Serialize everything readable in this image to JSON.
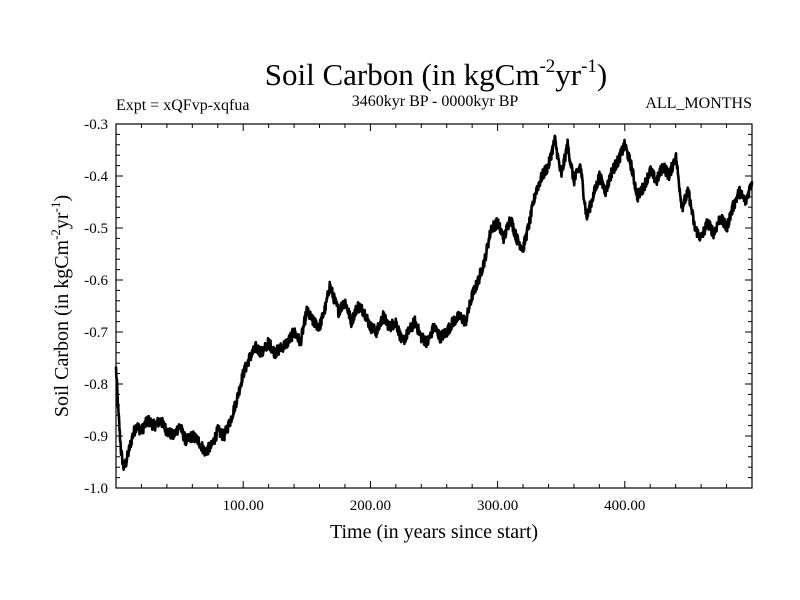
{
  "chart_data": {
    "type": "line",
    "title": "Soil Carbon (in kgCm",
    "title_sup1": "-2",
    "title_mid": "yr",
    "title_sup2": "-1",
    "title_end": ")",
    "subtitle_left": "Expt = xQFvp-xqfua",
    "subtitle_center": "3460kyr BP - 0000kyr BP",
    "subtitle_right": "ALL_MONTHS",
    "xlabel": "Time (in years since start)",
    "ylabel": "Soil Carbon (in kgCm",
    "ylabel_sup1": "-2",
    "ylabel_mid": "yr",
    "ylabel_sup2": "-1",
    "ylabel_end": ")",
    "xlim": [
      0,
      500
    ],
    "ylim": [
      -1.0,
      -0.3
    ],
    "xticks": [
      100,
      200,
      300,
      400
    ],
    "xtick_labels": [
      "100.00",
      "200.00",
      "300.00",
      "400.00"
    ],
    "yticks": [
      -1.0,
      -0.9,
      -0.8,
      -0.7,
      -0.6,
      -0.5,
      -0.4,
      -0.3
    ],
    "ytick_labels": [
      "-1.0",
      "-0.9",
      "-0.8",
      "-0.7",
      "-0.6",
      "-0.5",
      "-0.4",
      "-0.3"
    ],
    "line_color": "#000000",
    "series": [
      {
        "name": "Soil Carbon",
        "x": [
          0,
          2,
          4,
          6,
          8,
          10,
          13,
          16,
          20,
          25,
          30,
          35,
          40,
          45,
          50,
          55,
          60,
          65,
          70,
          75,
          80,
          85,
          90,
          95,
          100,
          105,
          110,
          115,
          120,
          125,
          130,
          135,
          140,
          145,
          150,
          155,
          160,
          165,
          168,
          172,
          175,
          180,
          185,
          190,
          195,
          200,
          205,
          210,
          215,
          220,
          225,
          230,
          235,
          240,
          245,
          250,
          255,
          260,
          265,
          270,
          275,
          280,
          285,
          290,
          295,
          300,
          305,
          310,
          315,
          320,
          325,
          330,
          335,
          340,
          345,
          350,
          355,
          360,
          365,
          370,
          375,
          380,
          385,
          390,
          395,
          400,
          405,
          410,
          415,
          420,
          425,
          430,
          435,
          440,
          445,
          450,
          455,
          460,
          465,
          470,
          475,
          480,
          485,
          490,
          495,
          500
        ],
        "y": [
          -0.77,
          -0.86,
          -0.93,
          -0.96,
          -0.95,
          -0.93,
          -0.9,
          -0.88,
          -0.89,
          -0.87,
          -0.88,
          -0.87,
          -0.89,
          -0.9,
          -0.88,
          -0.91,
          -0.9,
          -0.91,
          -0.93,
          -0.92,
          -0.89,
          -0.9,
          -0.87,
          -0.83,
          -0.78,
          -0.75,
          -0.73,
          -0.74,
          -0.72,
          -0.74,
          -0.73,
          -0.72,
          -0.7,
          -0.72,
          -0.66,
          -0.68,
          -0.69,
          -0.65,
          -0.61,
          -0.64,
          -0.66,
          -0.64,
          -0.68,
          -0.65,
          -0.66,
          -0.69,
          -0.7,
          -0.67,
          -0.69,
          -0.68,
          -0.72,
          -0.7,
          -0.68,
          -0.71,
          -0.72,
          -0.69,
          -0.71,
          -0.7,
          -0.68,
          -0.67,
          -0.68,
          -0.63,
          -0.6,
          -0.56,
          -0.5,
          -0.49,
          -0.52,
          -0.48,
          -0.52,
          -0.54,
          -0.49,
          -0.43,
          -0.4,
          -0.38,
          -0.33,
          -0.4,
          -0.34,
          -0.41,
          -0.38,
          -0.48,
          -0.44,
          -0.4,
          -0.43,
          -0.39,
          -0.37,
          -0.34,
          -0.38,
          -0.44,
          -0.42,
          -0.39,
          -0.41,
          -0.38,
          -0.4,
          -0.36,
          -0.46,
          -0.43,
          -0.5,
          -0.52,
          -0.49,
          -0.51,
          -0.48,
          -0.5,
          -0.46,
          -0.43,
          -0.45,
          -0.41
        ]
      }
    ]
  }
}
